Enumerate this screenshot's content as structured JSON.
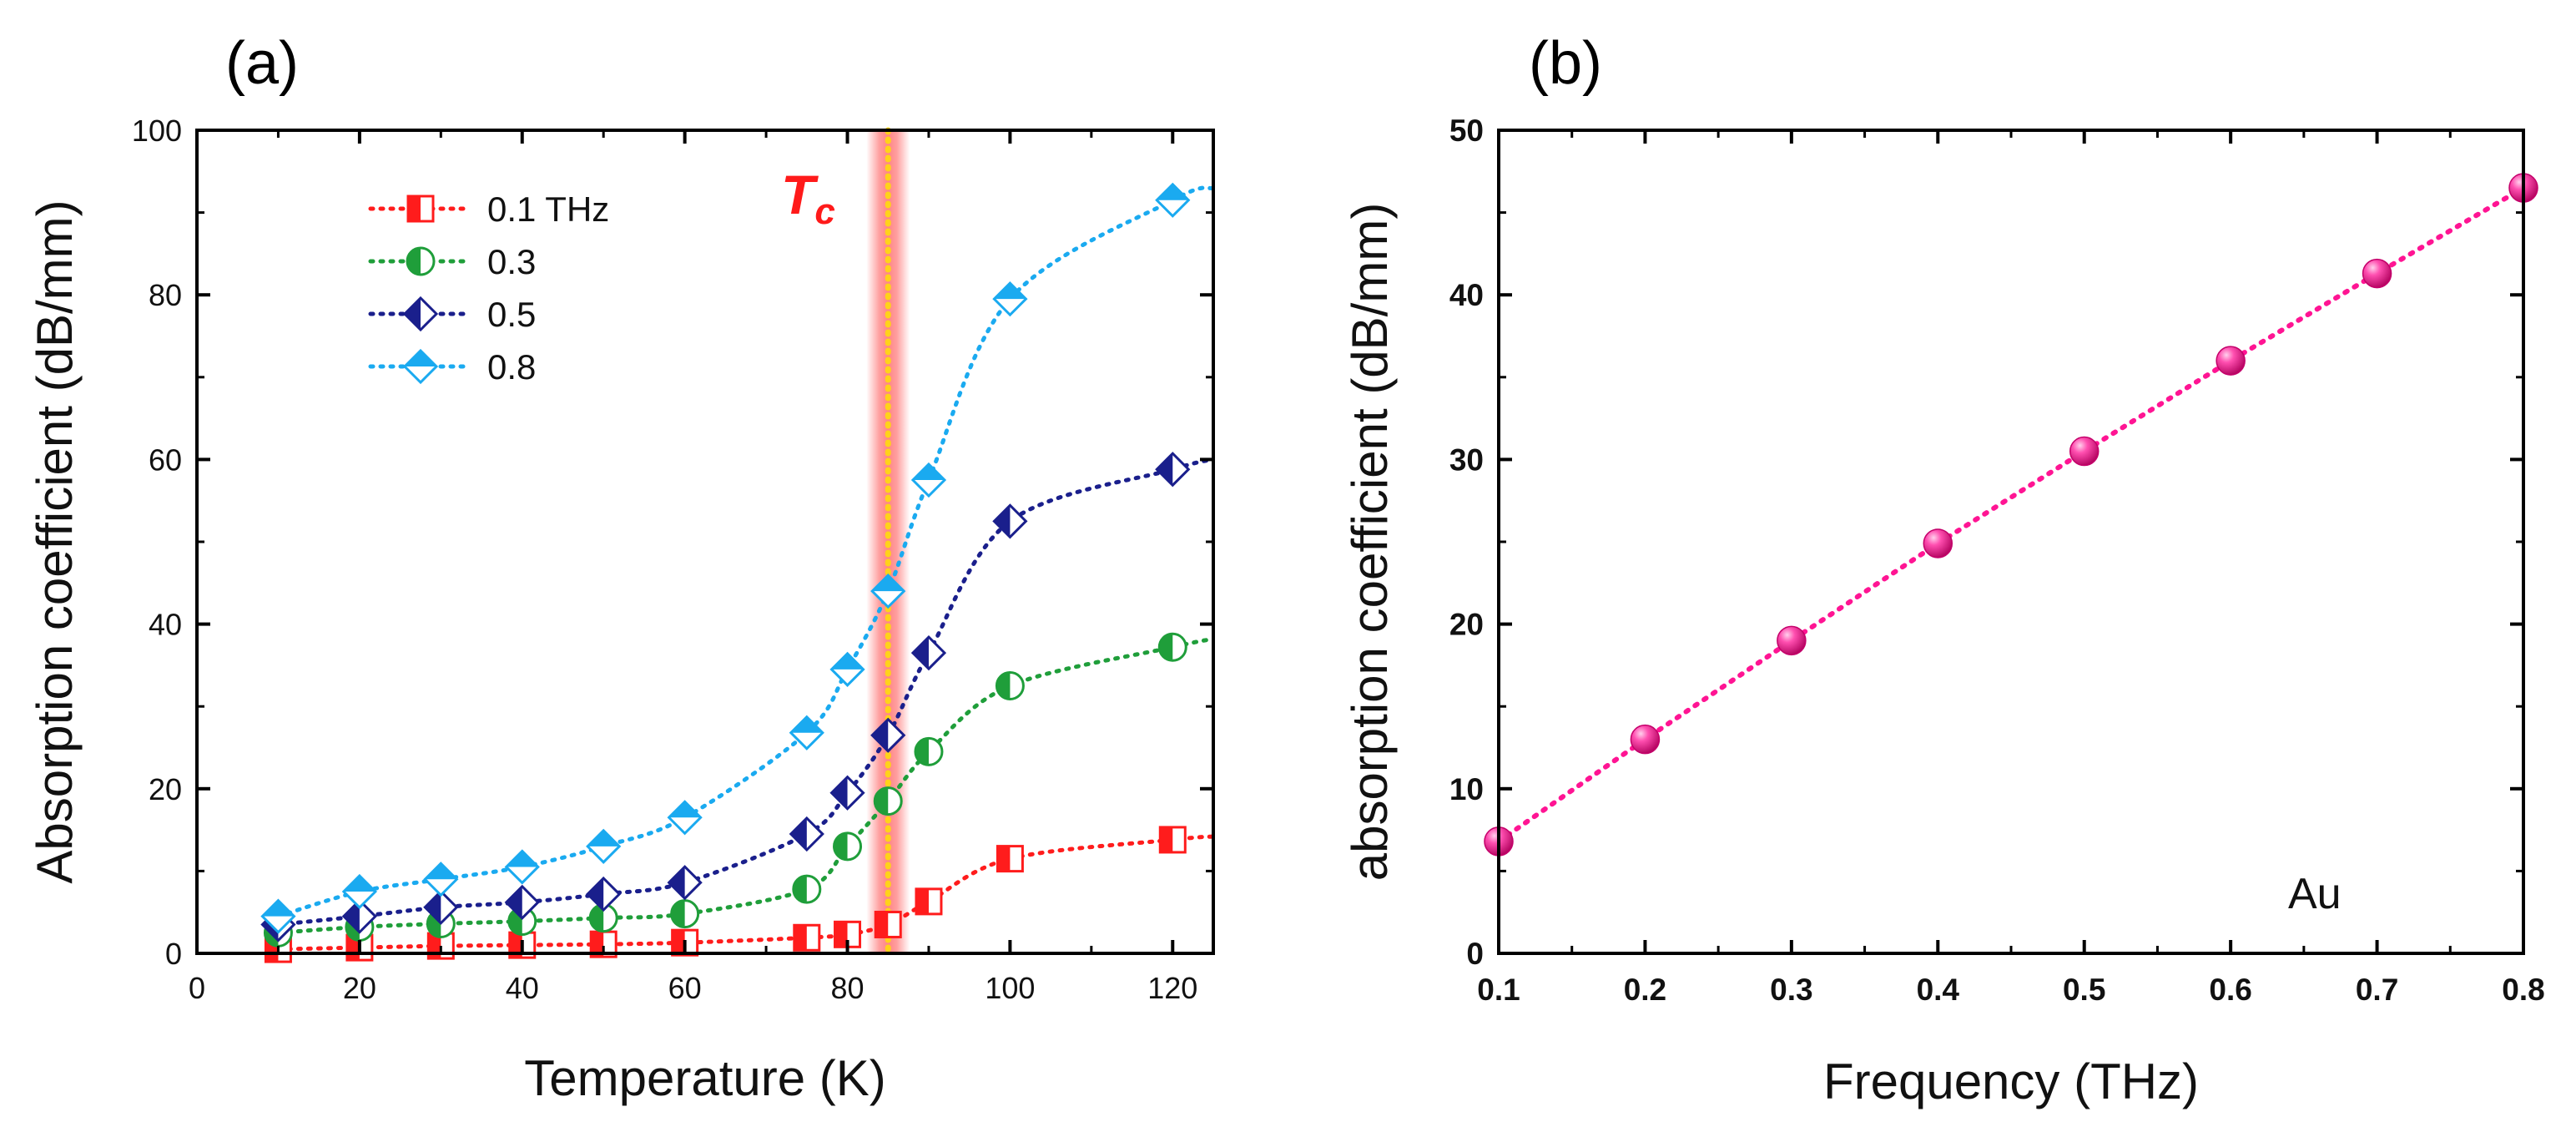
{
  "colors": {
    "red": "#ff1c1c",
    "green": "#1f9e3a",
    "navy": "#1a1f8c",
    "cyan": "#1aaaf0",
    "magenta": "#ff1493",
    "tc_band": "#ff5050",
    "tc_line": "#ffd21a"
  },
  "chart_data": [
    {
      "panel_label": "(a)",
      "type": "line",
      "xlabel": "Temperature (K)",
      "ylabel": "Absorption coefficient (dB/mm)",
      "xlim": [
        0,
        125
      ],
      "ylim": [
        0,
        100
      ],
      "x_ticks": [
        0,
        20,
        40,
        60,
        80,
        100,
        120
      ],
      "y_ticks": [
        0,
        20,
        40,
        60,
        80,
        100
      ],
      "x_tick_labels": [
        "0",
        "20",
        "40",
        "60",
        "80",
        "100",
        "120"
      ],
      "y_tick_labels": [
        "0",
        "20",
        "40",
        "60",
        "80",
        "100"
      ],
      "x": [
        10,
        20,
        30,
        40,
        50,
        60,
        75,
        80,
        85,
        90,
        100,
        120
      ],
      "series": [
        {
          "name": "0.1 THz",
          "marker": "square",
          "color": "red",
          "values": [
            0.5,
            0.7,
            0.9,
            1.0,
            1.1,
            1.3,
            1.9,
            2.3,
            3.5,
            6.3,
            11.5,
            13.8
          ],
          "line_end": 14.2
        },
        {
          "name": "0.3",
          "marker": "circle",
          "color": "green",
          "values": [
            2.5,
            3.2,
            3.6,
            3.9,
            4.3,
            4.8,
            7.8,
            13.0,
            18.5,
            24.5,
            32.5,
            37.2
          ],
          "line_end": 38.2
        },
        {
          "name": "0.5",
          "marker": "diamond-half",
          "color": "navy",
          "values": [
            3.5,
            4.5,
            5.6,
            6.2,
            7.2,
            8.6,
            14.5,
            19.5,
            26.5,
            36.5,
            52.5,
            58.8
          ],
          "line_end": 60.0
        },
        {
          "name": "0.8",
          "marker": "diamond-top",
          "color": "cyan",
          "values": [
            4.5,
            7.5,
            9.0,
            10.5,
            13.0,
            16.5,
            26.8,
            34.5,
            44.0,
            57.5,
            79.5,
            91.5
          ],
          "line_end": 93.0
        }
      ],
      "annotation": {
        "text_main": "T",
        "text_sub": "c",
        "x_value": 85
      }
    },
    {
      "panel_label": "(b)",
      "type": "scatter",
      "xlabel": "Frequency (THz)",
      "ylabel": "absorption coefficient (dB/mm)",
      "xlim": [
        0.1,
        0.8
      ],
      "ylim": [
        0,
        50
      ],
      "x_ticks": [
        0.1,
        0.2,
        0.3,
        0.4,
        0.5,
        0.6,
        0.7,
        0.8
      ],
      "y_ticks": [
        0,
        10,
        20,
        30,
        40,
        50
      ],
      "x_tick_labels": [
        "0.1",
        "0.2",
        "0.3",
        "0.4",
        "0.5",
        "0.6",
        "0.7",
        "0.8"
      ],
      "y_tick_labels": [
        "0",
        "10",
        "20",
        "30",
        "40",
        "50"
      ],
      "x": [
        0.1,
        0.2,
        0.3,
        0.4,
        0.5,
        0.6,
        0.7,
        0.8
      ],
      "series": [
        {
          "name": "Au",
          "marker": "sphere",
          "color": "magenta",
          "values": [
            6.8,
            13.0,
            19.0,
            24.9,
            30.5,
            36.0,
            41.3,
            46.5
          ]
        }
      ],
      "annotation": {
        "text": "Au"
      }
    }
  ]
}
